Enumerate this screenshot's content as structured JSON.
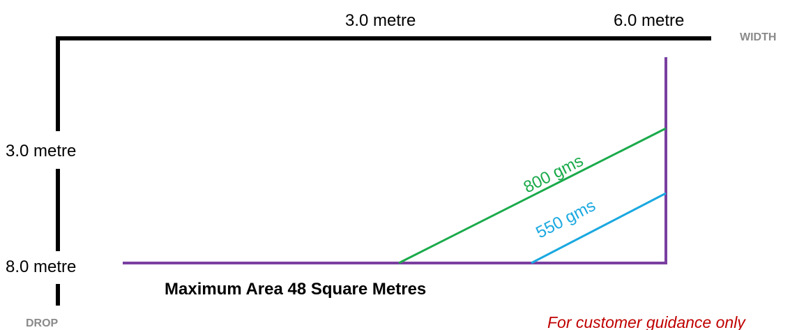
{
  "width_axis": {
    "label": "WIDTH",
    "tick_labels": [
      "3.0 metre",
      "6.0 metre"
    ]
  },
  "drop_axis": {
    "label": "DROP",
    "tick_labels": [
      "3.0 metre",
      "8.0 metre"
    ]
  },
  "lines": [
    {
      "label": "800 gms",
      "color": "#1aaa4a"
    },
    {
      "label": "550 gms",
      "color": "#1aa8e0"
    }
  ],
  "boundary_color": "#7a3fa0",
  "axis_color": "#000000",
  "heading": "Maximum Area 48 Square Metres",
  "footnote": "For customer guidance only",
  "footnote_color": "#c00000",
  "axis_label_color": "#8a8a8a"
}
